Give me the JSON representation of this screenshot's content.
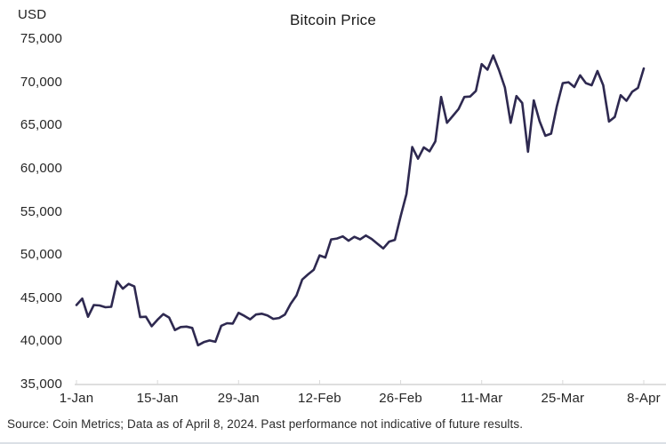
{
  "header": {
    "unit_label": "USD",
    "title": "Bitcoin Price"
  },
  "footer": {
    "source": "Source: Coin Metrics; Data as of April 8, 2024. Past performance not indicative of future results."
  },
  "colors": {
    "line": "#2e2950",
    "axis": "#c9c9c9",
    "tick": "#d9d9d9",
    "label_text": "#262626"
  },
  "chart_data": {
    "type": "line",
    "title": "Bitcoin Price",
    "ylabel": "USD",
    "xlabel": "",
    "series_name": "Bitcoin price",
    "x_unit": "daily closes, 1-Jan-2024 through 8-Apr-2024 (day index 0–98)",
    "values": [
      44200,
      44950,
      42850,
      44200,
      44150,
      43950,
      44000,
      46950,
      46100,
      46650,
      46350,
      42800,
      42850,
      41750,
      42500,
      43150,
      42750,
      41300,
      41650,
      41700,
      41550,
      39550,
      39900,
      40100,
      39950,
      41800,
      42100,
      42050,
      43300,
      42950,
      42550,
      43100,
      43200,
      43000,
      42600,
      42700,
      43100,
      44350,
      45300,
      47150,
      47750,
      48300,
      49950,
      49700,
      51800,
      51900,
      52150,
      51650,
      52100,
      51800,
      52250,
      51850,
      51300,
      50750,
      51550,
      51750,
      54500,
      57050,
      62500,
      61150,
      62450,
      62000,
      63150,
      68300,
      65300,
      66100,
      66900,
      68300,
      68350,
      69000,
      72100,
      71450,
      73100,
      71400,
      69400,
      65300,
      68400,
      67600,
      61950,
      67900,
      65500,
      63800,
      64050,
      67250,
      69900,
      70000,
      69450,
      70800,
      69900,
      69650,
      71300,
      69650,
      65450,
      65980,
      68500,
      67850,
      68900,
      69350,
      71600
    ],
    "ylim": [
      35000,
      75000
    ],
    "grid": false,
    "legend": "none",
    "y_ticks": [
      {
        "value": 75000,
        "label": "75,000"
      },
      {
        "value": 70000,
        "label": "70,000"
      },
      {
        "value": 65000,
        "label": "65,000"
      },
      {
        "value": 60000,
        "label": "60,000"
      },
      {
        "value": 55000,
        "label": "55,000"
      },
      {
        "value": 50000,
        "label": "50,000"
      },
      {
        "value": 45000,
        "label": "45,000"
      },
      {
        "value": 40000,
        "label": "40,000"
      },
      {
        "value": 35000,
        "label": "35,000"
      }
    ],
    "x_ticks": [
      {
        "day": 0,
        "label": "1-Jan"
      },
      {
        "day": 14,
        "label": "15-Jan"
      },
      {
        "day": 28,
        "label": "29-Jan"
      },
      {
        "day": 42,
        "label": "12-Feb"
      },
      {
        "day": 56,
        "label": "26-Feb"
      },
      {
        "day": 70,
        "label": "11-Mar"
      },
      {
        "day": 84,
        "label": "25-Mar"
      },
      {
        "day": 98,
        "label": "8-Apr"
      }
    ]
  }
}
